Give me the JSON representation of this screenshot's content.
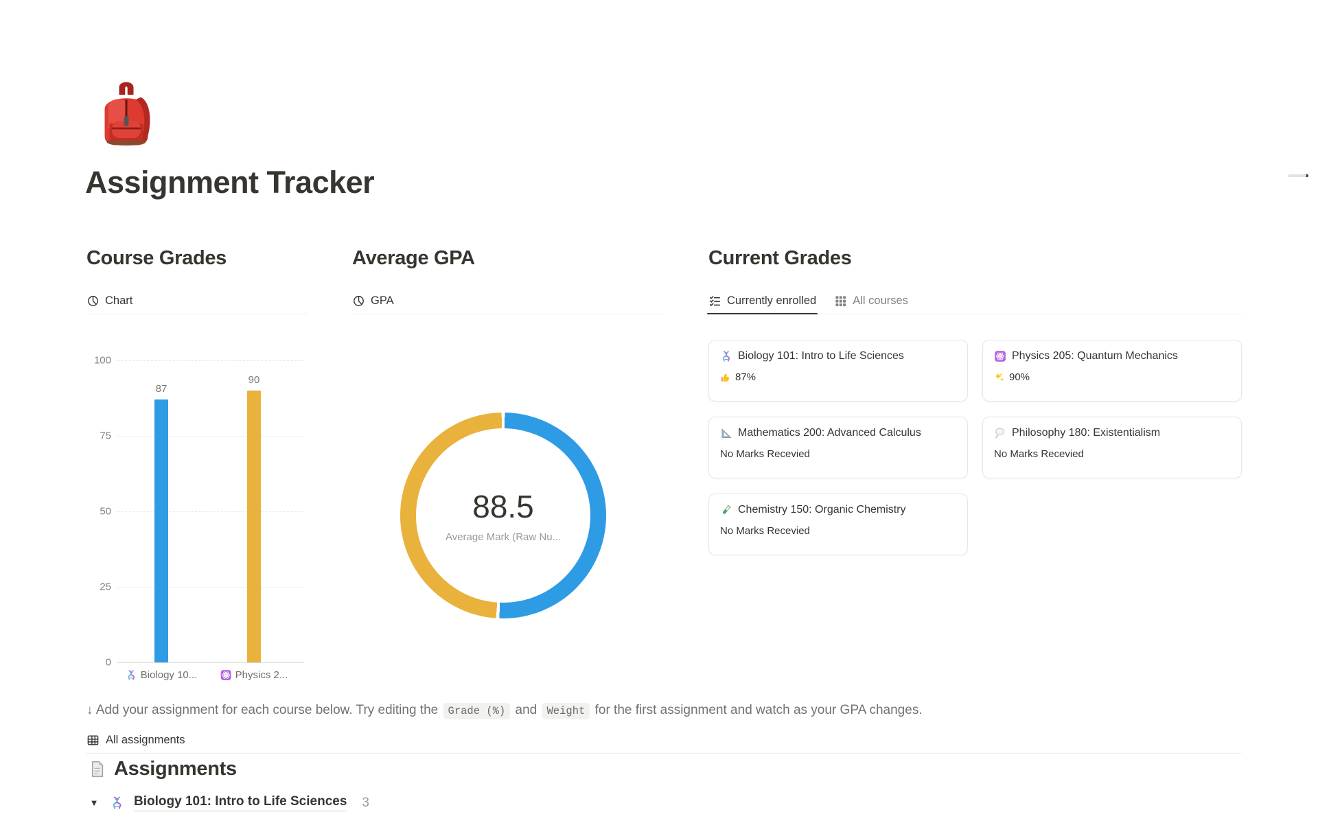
{
  "page": {
    "title": "Assignment Tracker",
    "icon": "backpack"
  },
  "toc_indicator": {
    "lines": 3
  },
  "columns": {
    "course_grades": {
      "heading": "Course Grades",
      "tab_label": "Chart"
    },
    "average_gpa": {
      "heading": "Average GPA",
      "tab_label": "GPA"
    },
    "current_grades": {
      "heading": "Current Grades",
      "tabs": [
        {
          "label": "Currently enrolled",
          "active": true
        },
        {
          "label": "All courses",
          "active": false
        }
      ],
      "cards": [
        {
          "icon": "dna",
          "title": "Biology 101: Intro to Life Sciences",
          "status_icon": "thumbs-up",
          "status": "87%"
        },
        {
          "icon": "atom",
          "title": "Physics 205: Quantum Mechanics",
          "status_icon": "sparkles",
          "status": "90%"
        },
        {
          "icon": "triangle-ruler",
          "title": "Mathematics 200: Advanced Calculus",
          "status_icon": "",
          "status": "No Marks Recevied"
        },
        {
          "icon": "thought-balloon",
          "title": "Philosophy 180: Existentialism",
          "status_icon": "",
          "status": "No Marks Recevied"
        },
        {
          "icon": "test-tube",
          "title": "Chemistry 150: Organic Chemistry",
          "status_icon": "",
          "status": "No Marks Recevied"
        }
      ]
    }
  },
  "chart_data": [
    {
      "type": "bar",
      "title": "Course Grades",
      "categories": [
        "Biology 10...",
        "Physics 2..."
      ],
      "category_icons": [
        "dna",
        "atom"
      ],
      "values": [
        87,
        90
      ],
      "bar_colors": [
        "#2e9be5",
        "#e9b23c"
      ],
      "value_labels": [
        "87",
        "90"
      ],
      "ylim": [
        0,
        100
      ],
      "yticks": [
        0,
        25,
        50,
        75,
        100
      ],
      "grid": "dotted-horizontal",
      "legend": "none"
    },
    {
      "type": "donut",
      "title": "Average GPA",
      "center_value": "88.5",
      "center_label": "Average Mark (Raw Nu...",
      "slices": [
        {
          "color": "#2e9be5",
          "value": 90
        },
        {
          "color": "#e9b23c",
          "value": 87
        }
      ],
      "start_angle_deg": 0,
      "direction": "clockwise"
    }
  ],
  "note": {
    "prefix": "↓ Add your assignment for each course below. Try editing the",
    "code1": "Grade (%)",
    "middle": "and",
    "code2": "Weight",
    "suffix": "for the first assignment and watch as your GPA changes."
  },
  "assignments": {
    "view_tab": "All assignments",
    "heading": "Assignments",
    "groups": [
      {
        "icon": "dna",
        "title": "Biology 101: Intro to Life Sciences",
        "count": "3",
        "collapsed": false
      }
    ]
  }
}
